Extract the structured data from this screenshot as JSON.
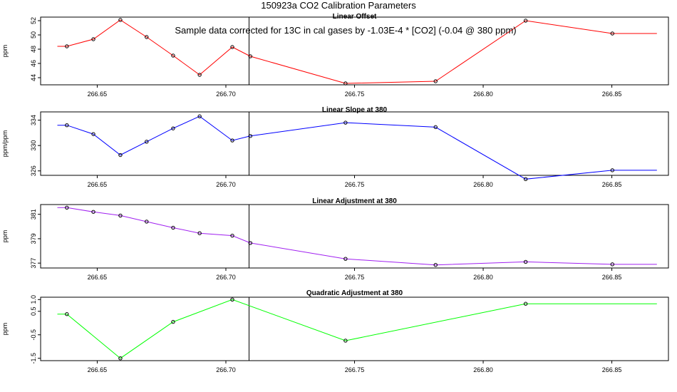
{
  "figure": {
    "title": "150923a   CO2 Calibration Parameters",
    "annotation": "Sample data corrected for 13C in cal gases by -1.03E-4 * [CO2] (-0.04 @ 380 ppm)"
  },
  "chart_data": [
    {
      "type": "line",
      "title": "Linear Offset",
      "ylabel": "ppm",
      "xlabel": "",
      "xlim": [
        266.628,
        266.872
      ],
      "ylim": [
        43.0,
        52.5
      ],
      "xticks": [
        266.65,
        266.7,
        266.75,
        266.8,
        266.85
      ],
      "xtick_labels": [
        "266.65",
        "266.70",
        "266.75",
        "266.80",
        "266.85"
      ],
      "yticks": [
        44,
        46,
        48,
        50,
        52
      ],
      "ytick_labels": [
        "44",
        "46",
        "48",
        "50",
        "52"
      ],
      "grid": false,
      "vline": 266.709,
      "color": "#ff0000",
      "series": [
        {
          "x": [
            266.6345,
            266.6382,
            266.6485,
            266.659,
            266.6692,
            266.6795,
            266.6898,
            266.7025,
            266.7095,
            266.7465,
            266.7815,
            266.8165,
            266.8502,
            266.8675
          ],
          "y": [
            48.4,
            48.4,
            49.4,
            52.1,
            49.7,
            47.1,
            44.4,
            48.3,
            47.0,
            43.2,
            43.5,
            52.0,
            50.2,
            50.2
          ],
          "markers": [
            false,
            true,
            true,
            true,
            true,
            true,
            true,
            true,
            true,
            true,
            true,
            true,
            true,
            false
          ]
        }
      ]
    },
    {
      "type": "line",
      "title": "Linear Slope at 380",
      "ylabel": "ppm/ppm",
      "xlabel": "",
      "xlim": [
        266.628,
        266.872
      ],
      "ylim": [
        325.3,
        335.3
      ],
      "xticks": [
        266.65,
        266.7,
        266.75,
        266.8,
        266.85
      ],
      "xtick_labels": [
        "266.65",
        "266.70",
        "266.75",
        "266.80",
        "266.85"
      ],
      "yticks": [
        326,
        330,
        334
      ],
      "ytick_labels": [
        "326",
        "330",
        "334"
      ],
      "grid": false,
      "vline": 266.709,
      "color": "#0000ff",
      "series": [
        {
          "x": [
            266.6345,
            266.6382,
            266.6485,
            266.659,
            266.6692,
            266.6795,
            266.6898,
            266.7025,
            266.7095,
            266.7465,
            266.7815,
            266.8165,
            266.8502,
            266.8675
          ],
          "y": [
            333.2,
            333.2,
            331.8,
            328.5,
            330.6,
            332.7,
            334.6,
            330.8,
            331.5,
            333.6,
            332.9,
            324.7,
            326.1,
            326.1
          ],
          "markers": [
            false,
            true,
            true,
            true,
            true,
            true,
            true,
            true,
            true,
            true,
            true,
            true,
            true,
            false
          ]
        }
      ]
    },
    {
      "type": "line",
      "title": "Linear Adjustment at 380",
      "ylabel": "ppm",
      "xlabel": "",
      "xlim": [
        266.628,
        266.872
      ],
      "ylim": [
        376.6,
        381.8
      ],
      "xticks": [
        266.65,
        266.7,
        266.75,
        266.8,
        266.85
      ],
      "xtick_labels": [
        "266.65",
        "266.70",
        "266.75",
        "266.80",
        "266.85"
      ],
      "yticks": [
        377,
        379,
        381
      ],
      "ytick_labels": [
        "377",
        "379",
        "381"
      ],
      "grid": false,
      "vline": 266.709,
      "color": "#a020f0",
      "series": [
        {
          "x": [
            266.6345,
            266.6382,
            266.6485,
            266.659,
            266.6692,
            266.6795,
            266.6898,
            266.7025,
            266.7095,
            266.7465,
            266.7815,
            266.8165,
            266.8502,
            266.8675
          ],
          "y": [
            381.55,
            381.55,
            381.2,
            380.9,
            380.4,
            379.9,
            379.45,
            379.25,
            378.65,
            377.35,
            376.85,
            377.1,
            376.9,
            376.9
          ],
          "markers": [
            false,
            true,
            true,
            true,
            true,
            true,
            true,
            true,
            true,
            true,
            true,
            true,
            true,
            false
          ]
        }
      ]
    },
    {
      "type": "line",
      "title": "Quadratic Adjustment at 380",
      "ylabel": "ppm",
      "xlabel": "",
      "xlim": [
        266.628,
        266.872
      ],
      "ylim": [
        -1.6,
        1.1
      ],
      "xticks": [
        266.65,
        266.7,
        266.75,
        266.8,
        266.85
      ],
      "xtick_labels": [
        "266.65",
        "266.70",
        "266.75",
        "266.80",
        "266.85"
      ],
      "yticks": [
        -1.5,
        -0.5,
        0.5,
        1.0
      ],
      "ytick_labels": [
        "-1.5",
        "-0.5",
        "0.5",
        "1.0"
      ],
      "grid": false,
      "vline": 266.709,
      "color": "#00ff00",
      "series": [
        {
          "x": [
            266.6345,
            266.6382,
            266.659,
            266.6795,
            266.7025,
            266.7465,
            266.8165,
            266.8675
          ],
          "y": [
            0.38,
            0.38,
            -1.5,
            0.05,
            1.0,
            -0.75,
            0.82,
            0.82
          ],
          "markers": [
            false,
            true,
            true,
            true,
            true,
            true,
            true,
            false
          ]
        }
      ]
    }
  ]
}
